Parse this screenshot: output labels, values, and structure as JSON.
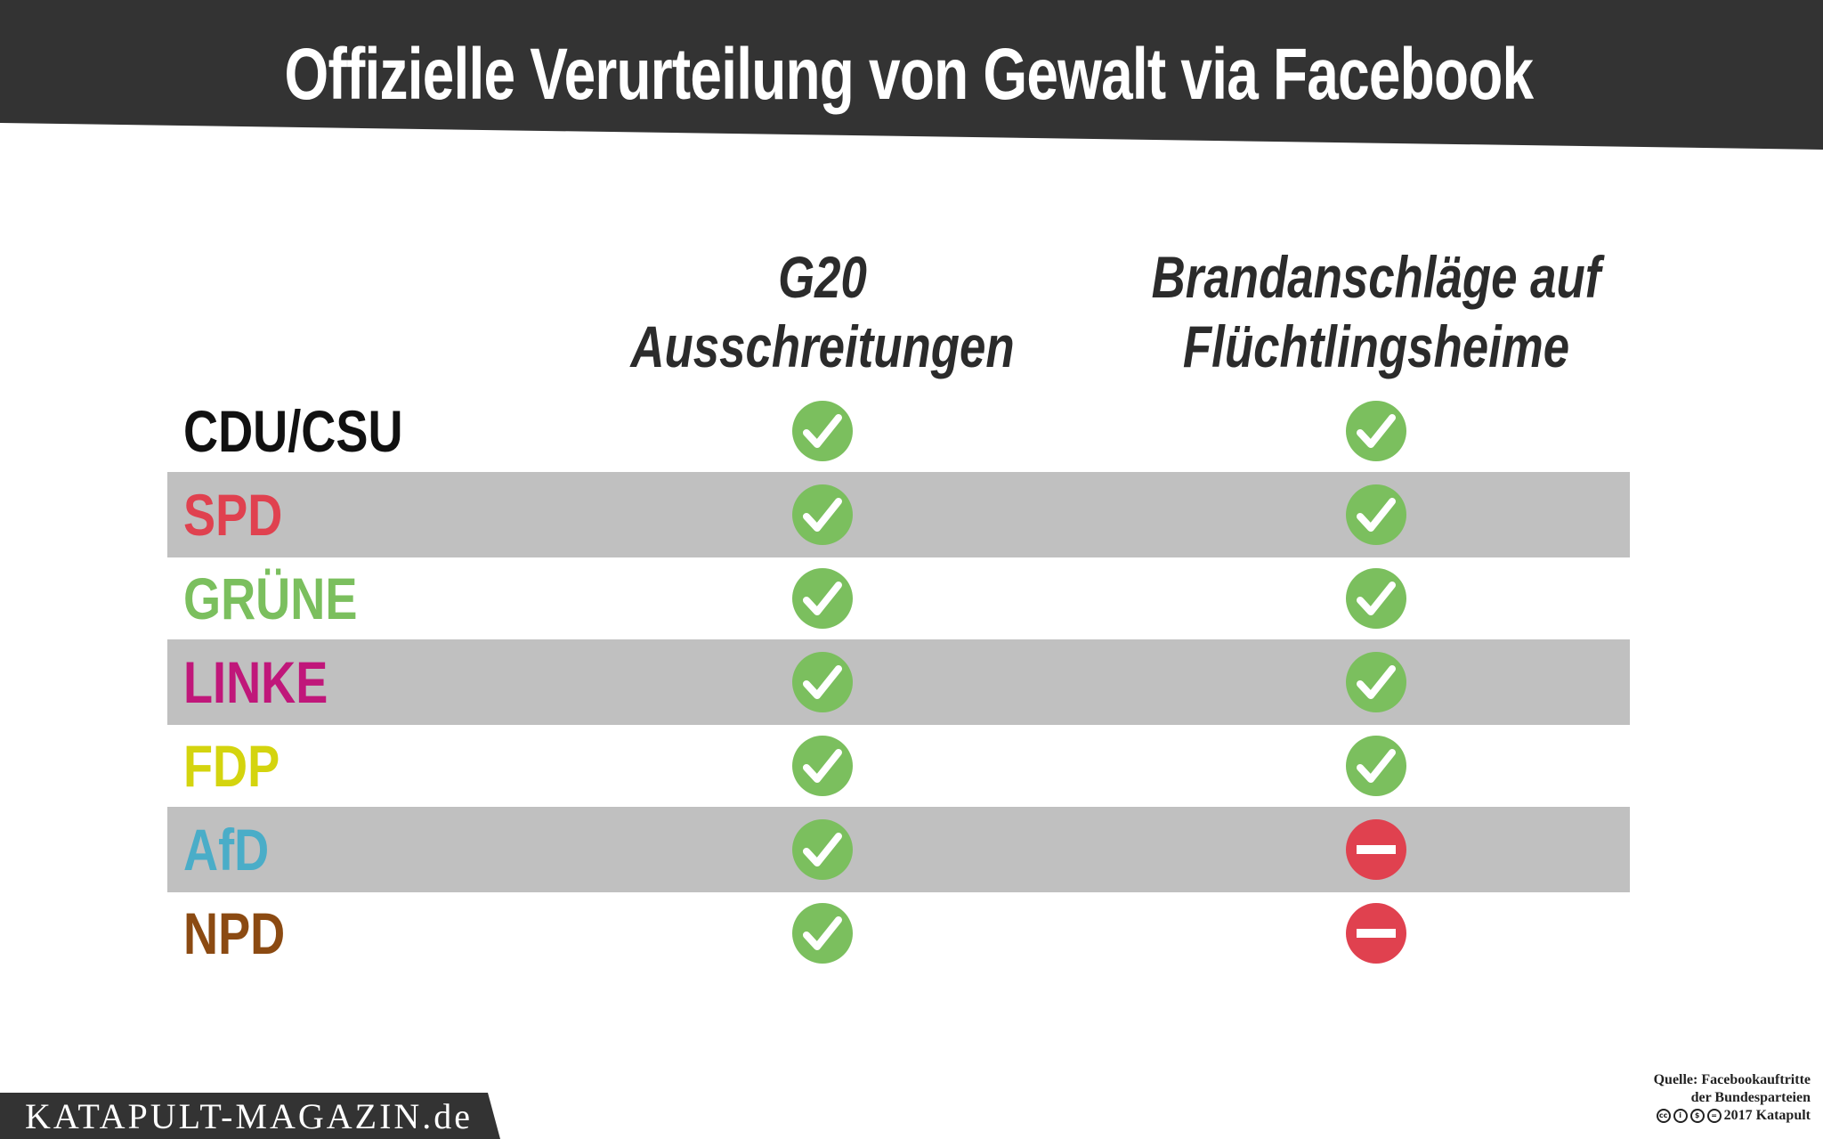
{
  "title": "Offizielle Verurteilung von Gewalt via Facebook",
  "columns": [
    {
      "line1": "G20",
      "line2": "Ausschreitungen"
    },
    {
      "line1": "Brandanschläge auf",
      "line2": "Flüchtlingsheime"
    }
  ],
  "colors": {
    "header_background": "#333333",
    "check": "#7bbf5e",
    "no": "#e0414f",
    "row_shade": "#c0c0c0"
  },
  "chart_data": {
    "type": "table",
    "title": "Offizielle Verurteilung von Gewalt via Facebook",
    "columns": [
      "G20 Ausschreitungen",
      "Brandanschläge auf Flüchtlingsheime"
    ],
    "rows": [
      {
        "party": "CDU/CSU",
        "color": "#111111",
        "values": [
          "yes",
          "yes"
        ]
      },
      {
        "party": "SPD",
        "color": "#e0414f",
        "values": [
          "yes",
          "yes"
        ]
      },
      {
        "party": "GRÜNE",
        "color": "#7bbf5e",
        "values": [
          "yes",
          "yes"
        ]
      },
      {
        "party": "LINKE",
        "color": "#c0177a",
        "values": [
          "yes",
          "yes"
        ]
      },
      {
        "party": "FDP",
        "color": "#d4d40e",
        "values": [
          "yes",
          "yes"
        ]
      },
      {
        "party": "AfD",
        "color": "#4aadc8",
        "values": [
          "yes",
          "no"
        ]
      },
      {
        "party": "NPD",
        "color": "#8b4a12",
        "values": [
          "yes",
          "no"
        ]
      }
    ]
  },
  "footer": {
    "brand": "KATAPULT-MAGAZIN.de",
    "source_line1": "Quelle: Facebookauftritte",
    "source_line2": "der Bundesparteien",
    "license_icons": [
      "cc",
      "by",
      "nc",
      "nd"
    ],
    "license_text": "2017 Katapult"
  }
}
